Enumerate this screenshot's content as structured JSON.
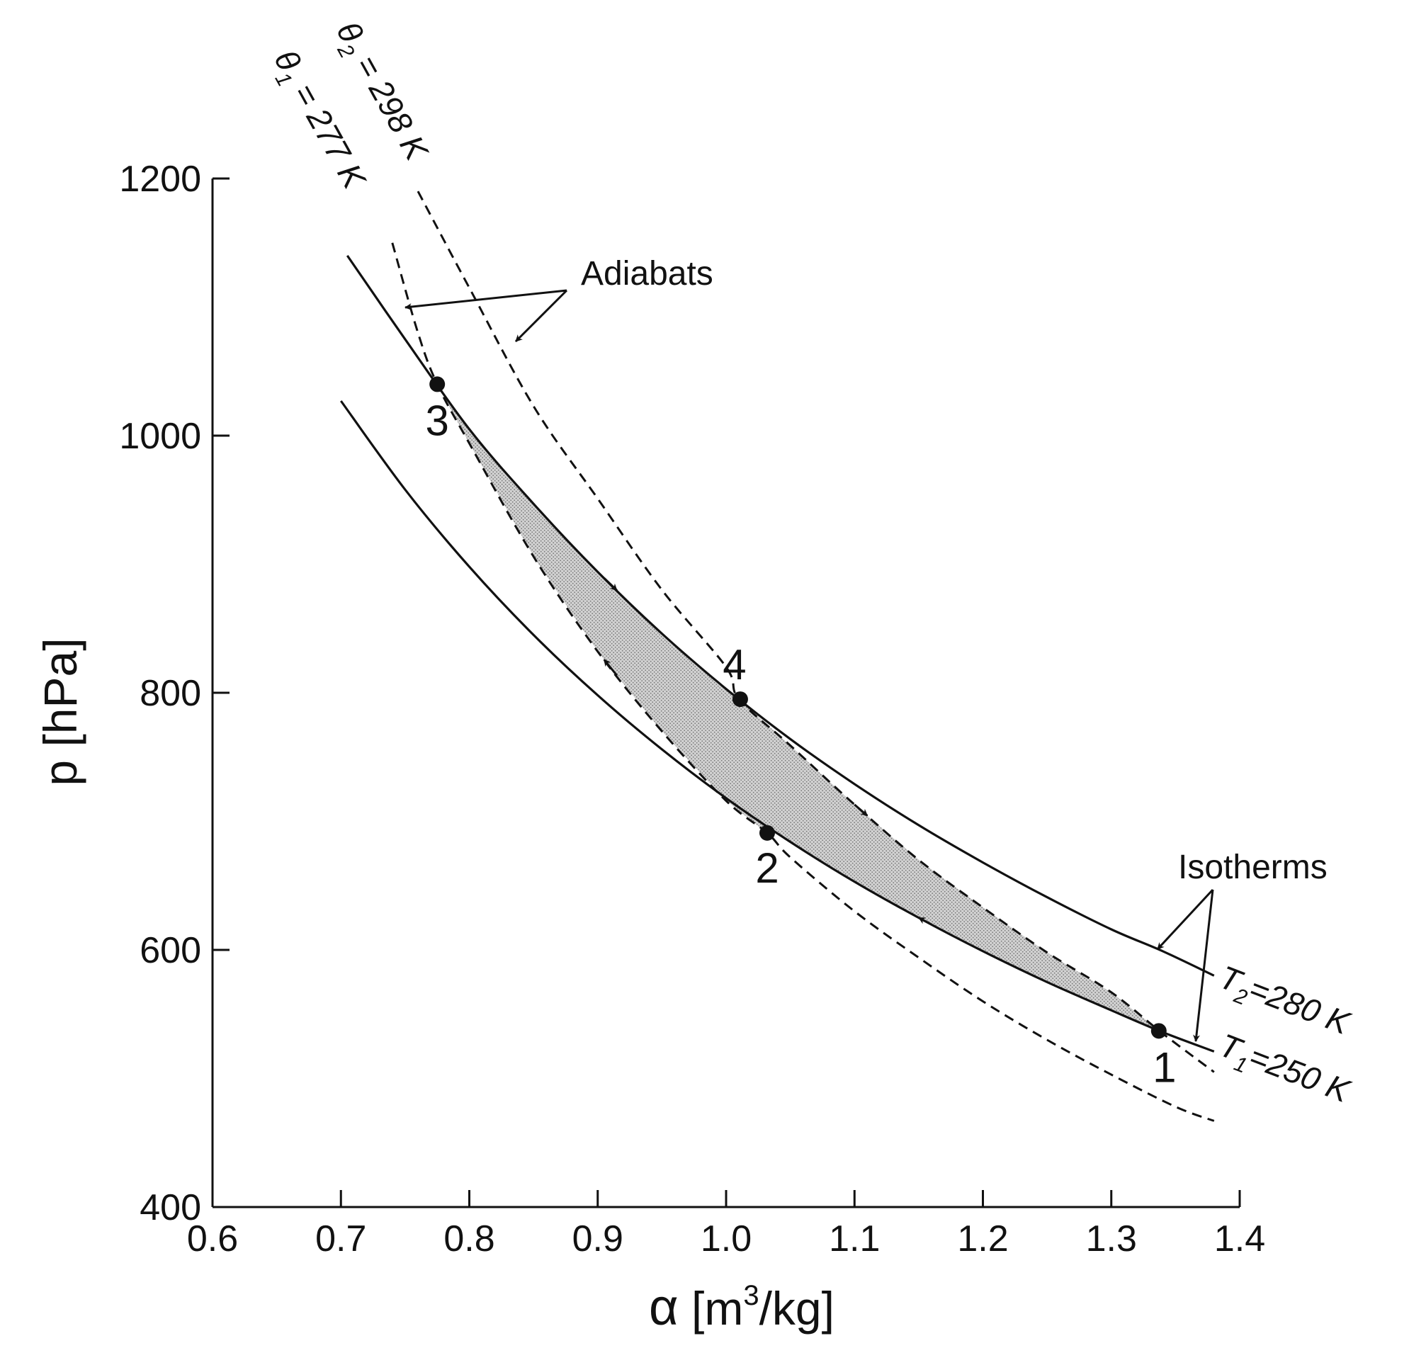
{
  "chart_data": {
    "type": "line",
    "xlabel_symbol": "α",
    "xlabel_unit_prefix": " [m",
    "xlabel_unit_sup": "3",
    "xlabel_unit_suffix": "/kg]",
    "ylabel": "p [hPa]",
    "xlim": [
      0.6,
      1.4
    ],
    "ylim": [
      400,
      1200
    ],
    "x_ticks": [
      0.6,
      0.7,
      0.8,
      0.9,
      1.0,
      1.1,
      1.2,
      1.3,
      1.4
    ],
    "x_tick_labels": [
      "0.6",
      "0.7",
      "0.8",
      "0.9",
      "1.0",
      "1.1",
      "1.2",
      "1.3",
      "1.4"
    ],
    "y_ticks": [
      400,
      600,
      800,
      1000,
      1200
    ],
    "y_tick_labels": [
      "400",
      "600",
      "800",
      "1000",
      "1200"
    ],
    "grid": false,
    "series": [
      {
        "key": "T2",
        "kind": "isotherm",
        "label_main": "T",
        "label_sub": "2",
        "label_rest": "=280 K",
        "x": [
          0.705,
          0.75,
          0.8,
          0.85,
          0.9,
          0.95,
          1.0,
          1.05,
          1.1,
          1.15,
          1.2,
          1.25,
          1.3,
          1.34,
          1.38
        ],
        "y": [
          1140,
          1075,
          1005,
          947,
          894,
          846,
          803,
          764,
          729,
          697,
          668,
          641,
          616,
          599,
          580
        ]
      },
      {
        "key": "T1",
        "kind": "isotherm",
        "label_main": "T",
        "label_sub": "1",
        "label_rest": "=250 K",
        "x": [
          0.7,
          0.75,
          0.8,
          0.85,
          0.9,
          0.95,
          1.0,
          1.05,
          1.1,
          1.15,
          1.2,
          1.25,
          1.3,
          1.34,
          1.38
        ],
        "y": [
          1027,
          958,
          898,
          845,
          798,
          756,
          718,
          684,
          653,
          625,
          599,
          575,
          553,
          536,
          521
        ]
      },
      {
        "key": "theta2",
        "kind": "adiabat",
        "label_main": "θ",
        "label_sub": "2",
        "label_rest": " = 298 K",
        "x": [
          0.76,
          0.8,
          0.85,
          0.9,
          0.95,
          1.0,
          1.01,
          1.05,
          1.1,
          1.15,
          1.2,
          1.25,
          1.3,
          1.34,
          1.38
        ],
        "y": [
          1190,
          1115,
          1023,
          951,
          880,
          820,
          795,
          759,
          713,
          670,
          633,
          598,
          567,
          535,
          505
        ]
      },
      {
        "key": "theta1",
        "kind": "adiabat",
        "label_main": "θ",
        "label_sub": "1",
        "label_rest": " = 277 K",
        "x": [
          0.74,
          0.76,
          0.775,
          0.8,
          0.85,
          0.9,
          0.95,
          1.0,
          1.032,
          1.05,
          1.1,
          1.15,
          1.2,
          1.25,
          1.3,
          1.35,
          1.38
        ],
        "y": [
          1150,
          1080,
          1040,
          994,
          906,
          832,
          770,
          716,
          691,
          672,
          630,
          594,
          560,
          530,
          503,
          478,
          467
        ]
      }
    ],
    "cycle_points": [
      {
        "label": "1",
        "x": 1.337,
        "y": 537
      },
      {
        "label": "2",
        "x": 1.032,
        "y": 691
      },
      {
        "label": "3",
        "x": 0.775,
        "y": 1040
      },
      {
        "label": "4",
        "x": 1.011,
        "y": 795
      }
    ],
    "shaded_region": "cycle 1-2-3-4",
    "annotations": [
      {
        "key": "adiabats",
        "text": "Adiabats"
      },
      {
        "key": "isotherms",
        "text": "Isotherms"
      }
    ]
  }
}
